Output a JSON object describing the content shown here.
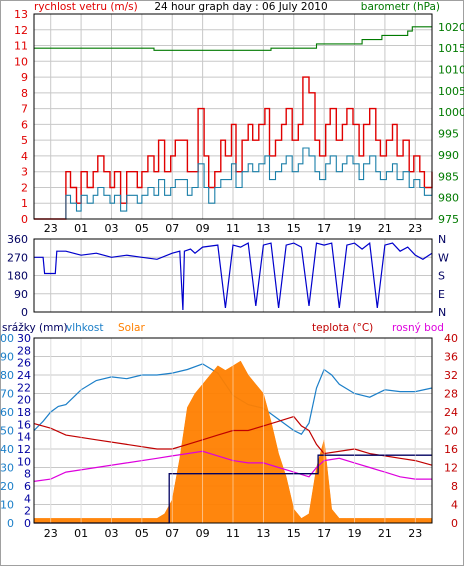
{
  "colors": {
    "wind": "#e00000",
    "gust_avg": "#1a7fa8",
    "pressure": "#007a00",
    "direction": "#0000cc",
    "humidity": "#1c7fc8",
    "rain_cum": "#000060",
    "solar": "#ff8000",
    "temperature": "#c00000",
    "dewpoint": "#dd00dd",
    "rain_axis": "#0000a0"
  },
  "chart_data": [
    {
      "type": "line",
      "title": "24 hour graph day : 06 July 2010",
      "ylabel_left": "rychlost vetru (m/s)",
      "ylabel_right": "barometr (hPa)",
      "x_tick_labels": [
        "23",
        "01",
        "03",
        "05",
        "07",
        "09",
        "11",
        "13",
        "15",
        "17",
        "19",
        "21",
        "23"
      ],
      "left_ticks": [
        "0",
        "1",
        "2",
        "3",
        "4",
        "5",
        "6",
        "7",
        "8",
        "9",
        "10",
        "11",
        "12",
        "13"
      ],
      "right_ticks": [
        "975",
        "980",
        "985",
        "990",
        "995",
        "1000",
        "1005",
        "1010",
        "1015",
        "1020"
      ],
      "ylim_left": [
        0,
        13
      ],
      "ylim_right": [
        975,
        1023
      ],
      "xlim_hours": [
        21.9,
        48.1
      ],
      "series": [
        {
          "key": "wind",
          "axis": "left",
          "x": [
            21.9,
            23.3,
            23.6,
            24.0,
            24.3,
            24.7,
            25.0,
            25.4,
            25.8,
            26.1,
            26.5,
            26.9,
            27.2,
            27.6,
            28.0,
            28.3,
            28.7,
            29.0,
            29.4,
            29.8,
            30.1,
            30.5,
            30.9,
            31.2,
            31.6,
            32.0,
            32.3,
            32.7,
            33.1,
            33.4,
            33.8,
            34.2,
            34.5,
            34.9,
            35.2,
            35.6,
            36.0,
            36.3,
            36.7,
            37.1,
            37.4,
            37.8,
            38.2,
            38.5,
            38.9,
            39.3,
            39.6,
            40.0,
            40.4,
            40.7,
            41.1,
            41.4,
            41.8,
            42.2,
            42.5,
            42.9,
            43.3,
            43.6,
            44.0,
            44.4,
            44.7,
            45.1,
            45.5,
            45.8,
            46.2,
            46.6,
            46.9,
            47.3,
            47.6,
            48.1
          ],
          "y": [
            0,
            0,
            0,
            3,
            2,
            1,
            3,
            2,
            3,
            4,
            3,
            2,
            3,
            1,
            3,
            3,
            2,
            3,
            4,
            3,
            5,
            3,
            4,
            5,
            5,
            3,
            3,
            7,
            4,
            2,
            3,
            5,
            4,
            6,
            3,
            5,
            6,
            5,
            6,
            7,
            4,
            5,
            6,
            7,
            5,
            6,
            9,
            8,
            5,
            4,
            6,
            7,
            5,
            6,
            7,
            6,
            4,
            6,
            7,
            5,
            4,
            5,
            6,
            4,
            5,
            3,
            4,
            3,
            2,
            3
          ]
        },
        {
          "key": "gust_avg",
          "axis": "left",
          "x": [
            21.9,
            23.3,
            23.6,
            24.0,
            24.3,
            24.7,
            25.0,
            25.4,
            25.8,
            26.1,
            26.5,
            26.9,
            27.2,
            27.6,
            28.0,
            28.3,
            28.7,
            29.0,
            29.4,
            29.8,
            30.1,
            30.5,
            30.9,
            31.2,
            31.6,
            32.0,
            32.3,
            32.7,
            33.1,
            33.4,
            33.8,
            34.2,
            34.5,
            34.9,
            35.2,
            35.6,
            36.0,
            36.3,
            36.7,
            37.1,
            37.4,
            37.8,
            38.2,
            38.5,
            38.9,
            39.3,
            39.6,
            40.0,
            40.4,
            40.7,
            41.1,
            41.4,
            41.8,
            42.2,
            42.5,
            42.9,
            43.3,
            43.6,
            44.0,
            44.4,
            44.7,
            45.1,
            45.5,
            45.8,
            46.2,
            46.6,
            46.9,
            47.3,
            47.6,
            48.1
          ],
          "y": [
            0,
            0,
            0,
            1.5,
            1,
            0.5,
            1.5,
            1,
            1.5,
            2,
            1.5,
            1,
            1.5,
            0.5,
            1.5,
            1.5,
            1,
            1.5,
            2,
            1.5,
            2.5,
            1.5,
            2,
            2.5,
            2.5,
            1.5,
            2,
            3.5,
            2,
            1,
            2,
            2.5,
            2.5,
            3.5,
            2,
            3,
            3.5,
            3,
            3.5,
            4,
            2.5,
            3,
            3.5,
            4,
            3,
            3.5,
            4.5,
            4,
            3,
            2.5,
            3.5,
            4,
            3,
            3.5,
            4,
            3.5,
            2.5,
            3.5,
            4,
            3,
            2.5,
            3,
            3.5,
            2.5,
            3,
            2,
            2.5,
            2,
            1.5,
            2
          ]
        },
        {
          "key": "pressure",
          "axis": "right",
          "x": [
            21.9,
            26.0,
            26.5,
            29.5,
            29.8,
            37.5,
            40.5,
            43.5,
            44.8,
            46.5,
            46.8,
            48.1
          ],
          "y": [
            1015,
            1015,
            1015,
            1015,
            1014.5,
            1015,
            1016,
            1017,
            1018,
            1019,
            1020,
            1020
          ]
        }
      ]
    },
    {
      "type": "line",
      "left_ticks": [
        "0",
        "90",
        "180",
        "270",
        "360"
      ],
      "right_ticks": [
        "N",
        "E",
        "S",
        "W",
        "N"
      ],
      "x_tick_labels": [
        "23",
        "01",
        "03",
        "05",
        "07",
        "09",
        "11",
        "13",
        "15",
        "17",
        "19",
        "21",
        "23"
      ],
      "ylim": [
        0,
        360
      ],
      "xlim_hours": [
        21.9,
        48.1
      ],
      "series": [
        {
          "key": "direction",
          "axis": "left",
          "x": [
            21.9,
            22.5,
            22.6,
            23.3,
            23.4,
            24.0,
            25.0,
            26.0,
            27.0,
            28.0,
            29.0,
            30.0,
            31.0,
            31.5,
            31.7,
            31.8,
            32.2,
            32.5,
            33.0,
            34.0,
            34.5,
            35.0,
            35.5,
            36.0,
            36.5,
            37.0,
            37.5,
            38.0,
            38.5,
            39.0,
            39.5,
            40.0,
            40.5,
            41.0,
            41.5,
            42.0,
            42.5,
            43.0,
            43.5,
            44.0,
            44.5,
            45.0,
            45.5,
            46.0,
            46.5,
            47.0,
            47.5,
            48.1
          ],
          "y": [
            270,
            270,
            190,
            190,
            300,
            300,
            280,
            290,
            270,
            280,
            270,
            260,
            290,
            300,
            10,
            300,
            310,
            290,
            320,
            330,
            20,
            330,
            320,
            340,
            30,
            330,
            340,
            20,
            330,
            340,
            320,
            30,
            340,
            330,
            340,
            20,
            330,
            340,
            310,
            340,
            20,
            330,
            340,
            300,
            320,
            280,
            260,
            290
          ]
        }
      ]
    },
    {
      "type": "line",
      "legend": [
        "srážky (mm)",
        "vlhkost",
        "Solar",
        "teplota (°C)",
        "rosný bod"
      ],
      "rain_ticks": [
        "0",
        "2",
        "4",
        "6",
        "8",
        "10",
        "12",
        "14",
        "16",
        "18",
        "20",
        "22",
        "24",
        "26",
        "28",
        "30"
      ],
      "humidity_ticks": [
        "0",
        "10",
        "20",
        "30",
        "40",
        "50",
        "60",
        "70",
        "80",
        "90",
        "100"
      ],
      "temperature_ticks": [
        "0",
        "4",
        "8",
        "12",
        "16",
        "20",
        "24",
        "28",
        "32",
        "36",
        "40"
      ],
      "x_tick_labels": [
        "23",
        "01",
        "03",
        "05",
        "07",
        "09",
        "11",
        "13",
        "15",
        "17",
        "19",
        "21",
        "23"
      ],
      "xlim_hours": [
        21.9,
        48.1
      ],
      "series": [
        {
          "key": "humidity",
          "axis": "humidity",
          "ylim": [
            0,
            100
          ],
          "x": [
            21.9,
            22.5,
            23.0,
            23.5,
            24.0,
            25.0,
            26.0,
            27.0,
            28.0,
            29.0,
            30.0,
            31.0,
            32.0,
            33.0,
            34.0,
            35.0,
            36.0,
            37.0,
            38.0,
            39.0,
            39.5,
            40.0,
            40.5,
            41.0,
            41.5,
            42.0,
            43.0,
            44.0,
            45.0,
            46.0,
            47.0,
            48.1
          ],
          "y": [
            50,
            55,
            60,
            63,
            64,
            72,
            77,
            79,
            78,
            80,
            80,
            81,
            83,
            86,
            81,
            69,
            64,
            62,
            56,
            50,
            48,
            54,
            73,
            83,
            80,
            75,
            70,
            68,
            72,
            71,
            71,
            73
          ]
        },
        {
          "key": "solar",
          "axis": "temperature",
          "ylim": [
            0,
            40
          ],
          "x": [
            21.9,
            30.0,
            30.5,
            31.0,
            31.5,
            32.0,
            32.5,
            33.0,
            33.5,
            34.0,
            34.5,
            35.0,
            35.5,
            36.0,
            36.5,
            37.0,
            37.5,
            38.0,
            38.5,
            39.0,
            39.5,
            40.0,
            40.5,
            41.0,
            41.5,
            42.0,
            42.5,
            43.0,
            43.5,
            44.0,
            48.1
          ],
          "y": [
            1,
            1,
            2,
            5,
            14,
            25,
            28,
            30,
            32,
            34,
            33,
            34,
            35,
            32,
            30,
            28,
            22,
            15,
            10,
            3,
            1,
            2,
            12,
            18,
            3,
            1,
            1,
            1,
            1,
            1,
            1
          ]
        },
        {
          "key": "temperature",
          "axis": "temperature",
          "ylim": [
            0,
            40
          ],
          "x": [
            21.9,
            23.0,
            24.0,
            26.0,
            28.0,
            30.0,
            31.0,
            32.0,
            33.0,
            34.0,
            35.0,
            36.0,
            37.0,
            38.0,
            39.0,
            39.5,
            40.0,
            40.5,
            41.0,
            43.0,
            44.0,
            45.0,
            46.0,
            47.0,
            48.1
          ],
          "y": [
            21.5,
            20.5,
            19,
            18,
            17,
            16,
            16,
            17,
            18,
            19,
            20,
            20,
            21,
            22,
            23,
            21,
            20,
            17,
            15,
            16,
            15,
            14.5,
            14,
            13.5,
            12.5
          ]
        },
        {
          "key": "dewpoint",
          "axis": "temperature",
          "ylim": [
            0,
            40
          ],
          "x": [
            21.9,
            23.0,
            24.0,
            26.0,
            28.0,
            30.0,
            31.0,
            32.0,
            33.0,
            34.0,
            35.0,
            36.0,
            37.0,
            38.0,
            39.0,
            40.0,
            40.5,
            41.0,
            42.0,
            43.0,
            44.0,
            45.0,
            46.0,
            47.0,
            48.1
          ],
          "y": [
            9,
            9.5,
            11,
            12,
            13,
            14,
            14.5,
            15,
            15.5,
            14.5,
            13.5,
            13,
            13,
            12,
            11,
            10,
            12,
            13.5,
            14,
            13,
            12,
            11,
            10,
            9.5,
            9.5
          ]
        },
        {
          "key": "rain_cum",
          "axis": "rain",
          "ylim": [
            0,
            30
          ],
          "x": [
            21.9,
            30.5,
            30.8,
            40.5,
            40.6,
            48.1
          ],
          "y": [
            0,
            0,
            8,
            8,
            11,
            11
          ]
        }
      ]
    }
  ]
}
